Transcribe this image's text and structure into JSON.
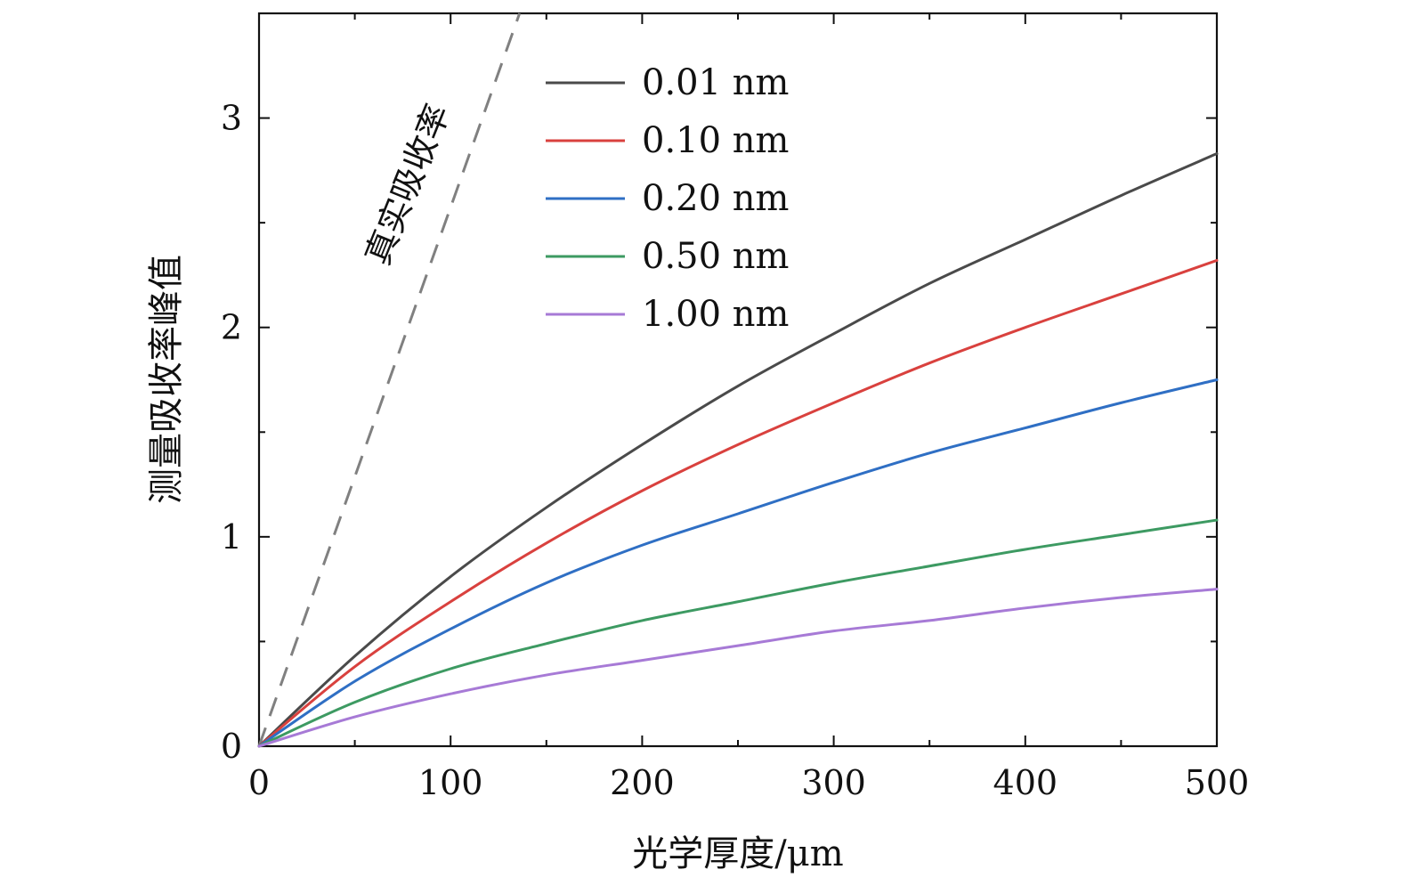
{
  "chart_data": {
    "type": "line",
    "title": "",
    "xlabel": "光学厚度/μm",
    "ylabel": "测量吸收率峰值",
    "xlim": [
      0,
      500
    ],
    "ylim": [
      0,
      3.5
    ],
    "x_ticks": [
      0,
      100,
      200,
      300,
      400,
      500
    ],
    "x_minor_ticks": [
      50,
      150,
      250,
      350,
      450
    ],
    "y_ticks": [
      0,
      1,
      2,
      3
    ],
    "y_minor_ticks": [
      0.5,
      1.5,
      2.5
    ],
    "grid": false,
    "legend_position": "top-center",
    "x": [
      0,
      50,
      100,
      150,
      200,
      250,
      300,
      350,
      400,
      450,
      500
    ],
    "series": [
      {
        "name": "0.01 nm",
        "color": "#4a4a4a",
        "style": "solid",
        "values": [
          0,
          0.43,
          0.81,
          1.14,
          1.44,
          1.72,
          1.97,
          2.21,
          2.42,
          2.63,
          2.83
        ]
      },
      {
        "name": "0.10 nm",
        "color": "#d9413e",
        "style": "solid",
        "values": [
          0,
          0.38,
          0.69,
          0.97,
          1.22,
          1.44,
          1.64,
          1.83,
          2.0,
          2.16,
          2.32
        ]
      },
      {
        "name": "0.20 nm",
        "color": "#2f6fc4",
        "style": "solid",
        "values": [
          0,
          0.31,
          0.56,
          0.78,
          0.96,
          1.11,
          1.26,
          1.4,
          1.52,
          1.64,
          1.75
        ]
      },
      {
        "name": "0.50 nm",
        "color": "#3d9a62",
        "style": "solid",
        "values": [
          0,
          0.21,
          0.37,
          0.49,
          0.6,
          0.69,
          0.78,
          0.86,
          0.94,
          1.01,
          1.08
        ]
      },
      {
        "name": "1.00 nm",
        "color": "#a77ad6",
        "style": "solid",
        "values": [
          0,
          0.14,
          0.25,
          0.34,
          0.41,
          0.48,
          0.55,
          0.6,
          0.66,
          0.71,
          0.75
        ]
      }
    ],
    "reference_line": {
      "name": "真实吸收率",
      "color": "#808080",
      "style": "dashed",
      "x": [
        0,
        136
      ],
      "values": [
        0,
        3.5
      ]
    }
  }
}
